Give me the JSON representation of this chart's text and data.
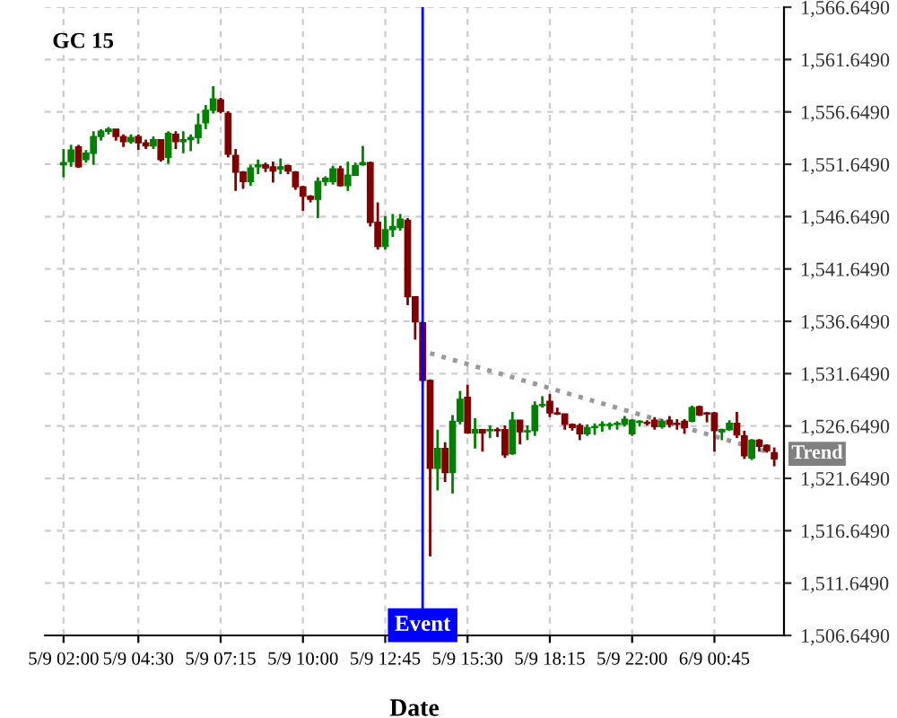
{
  "chart_data": {
    "type": "candlestick",
    "title": "GC 15",
    "xlabel": "Date",
    "categories": [
      "5/9 02:00",
      null,
      null,
      null,
      null,
      null,
      null,
      null,
      null,
      null,
      "5/9 04:30",
      null,
      null,
      null,
      null,
      null,
      null,
      null,
      null,
      null,
      null,
      "5/9 07:15",
      null,
      null,
      null,
      null,
      null,
      null,
      null,
      null,
      null,
      null,
      "5/9 10:00",
      null,
      null,
      null,
      null,
      null,
      null,
      null,
      null,
      null,
      null,
      "5/9 12:45",
      null,
      null,
      null,
      null,
      null,
      null,
      null,
      null,
      null,
      null,
      "5/9 15:30",
      null,
      null,
      null,
      null,
      null,
      null,
      null,
      null,
      null,
      null,
      "5/9 18:15",
      null,
      null,
      null,
      null,
      null,
      null,
      null,
      null,
      null,
      null,
      "5/9 22:00",
      null,
      null,
      null,
      null,
      null,
      null,
      null,
      null,
      null,
      null,
      "6/9 00:45",
      null,
      null,
      null,
      null,
      null,
      null,
      null,
      null
    ],
    "ohlc": [
      [
        1551.6,
        1553.1,
        1550.4,
        1551.8
      ],
      [
        1551.9,
        1553.5,
        1551.4,
        1553.0
      ],
      [
        1553.3,
        1553.5,
        1551.3,
        1551.4
      ],
      [
        1552.1,
        1553.0,
        1551.8,
        1552.7
      ],
      [
        1552.7,
        1554.8,
        1551.6,
        1554.3
      ],
      [
        1554.3,
        1555.0,
        1553.9,
        1554.8
      ],
      [
        1554.8,
        1555.2,
        1554.5,
        1555.0
      ],
      [
        1555.0,
        1555.0,
        1553.9,
        1554.3
      ],
      [
        1554.3,
        1554.5,
        1553.3,
        1553.8
      ],
      [
        1553.8,
        1554.5,
        1553.6,
        1554.2
      ],
      [
        1554.3,
        1554.5,
        1553.0,
        1553.7
      ],
      [
        1553.7,
        1554.0,
        1553.1,
        1553.4
      ],
      [
        1553.4,
        1554.3,
        1553.1,
        1554.0
      ],
      [
        1554.0,
        1554.0,
        1551.9,
        1552.1
      ],
      [
        1552.3,
        1554.8,
        1551.7,
        1554.6
      ],
      [
        1554.5,
        1554.8,
        1553.1,
        1553.8
      ],
      [
        1553.8,
        1554.8,
        1552.7,
        1554.0
      ],
      [
        1554.0,
        1554.5,
        1552.9,
        1554.2
      ],
      [
        1554.2,
        1556.5,
        1553.6,
        1555.4
      ],
      [
        1555.6,
        1557.3,
        1555.0,
        1556.8
      ],
      [
        1556.8,
        1559.1,
        1556.5,
        1557.9
      ],
      [
        1557.8,
        1558.0,
        1556.5,
        1556.7
      ],
      [
        1556.5,
        1556.7,
        1552.3,
        1552.6
      ],
      [
        1552.5,
        1553.1,
        1549.1,
        1550.9
      ],
      [
        1550.9,
        1551.0,
        1549.3,
        1550.0
      ],
      [
        1550.0,
        1551.6,
        1549.6,
        1551.3
      ],
      [
        1551.4,
        1552.1,
        1550.7,
        1551.6
      ],
      [
        1551.6,
        1551.8,
        1550.9,
        1551.3
      ],
      [
        1551.4,
        1551.9,
        1549.9,
        1551.0
      ],
      [
        1551.2,
        1552.2,
        1550.7,
        1551.4
      ],
      [
        1551.5,
        1551.6,
        1550.7,
        1551.0
      ],
      [
        1550.9,
        1551.0,
        1549.2,
        1549.5
      ],
      [
        1549.5,
        1549.6,
        1547.2,
        1548.6
      ],
      [
        1548.6,
        1548.7,
        1548.0,
        1548.3
      ],
      [
        1548.3,
        1550.4,
        1546.5,
        1550.0
      ],
      [
        1550.0,
        1550.5,
        1549.6,
        1550.3
      ],
      [
        1550.0,
        1551.5,
        1549.7,
        1551.2
      ],
      [
        1551.2,
        1551.5,
        1549.5,
        1549.6
      ],
      [
        1549.6,
        1551.9,
        1549.1,
        1550.6
      ],
      [
        1550.6,
        1551.8,
        1550.6,
        1551.5
      ],
      [
        1551.6,
        1553.4,
        1551.5,
        1551.8
      ],
      [
        1551.8,
        1551.9,
        1545.7,
        1546.1
      ],
      [
        1546.1,
        1548.0,
        1543.5,
        1543.8
      ],
      [
        1543.8,
        1546.7,
        1543.5,
        1545.4
      ],
      [
        1545.4,
        1546.9,
        1544.7,
        1545.7
      ],
      [
        1545.6,
        1546.9,
        1545.3,
        1546.4
      ],
      [
        1546.3,
        1546.5,
        1538.2,
        1539.0
      ],
      [
        1539.0,
        1539.0,
        1534.9,
        1536.6
      ],
      [
        1536.5,
        1536.6,
        1530.9,
        1531.0
      ],
      [
        1531.0,
        1531.1,
        1514.2,
        1522.6
      ],
      [
        1522.6,
        1526.3,
        1520.5,
        1524.5
      ],
      [
        1524.5,
        1525.1,
        1521.3,
        1522.2
      ],
      [
        1522.2,
        1527.7,
        1520.2,
        1527.1
      ],
      [
        1527.1,
        1530.0,
        1526.8,
        1529.2
      ],
      [
        1529.4,
        1530.6,
        1525.9,
        1526.0
      ],
      [
        1526.0,
        1527.4,
        1524.5,
        1526.3
      ],
      [
        1526.3,
        1526.3,
        1524.2,
        1526.0
      ],
      [
        1526.2,
        1526.7,
        1525.5,
        1526.3
      ],
      [
        1526.3,
        1526.5,
        1525.6,
        1526.2
      ],
      [
        1526.3,
        1526.7,
        1523.6,
        1523.9
      ],
      [
        1524.0,
        1528.0,
        1523.9,
        1527.2
      ],
      [
        1527.2,
        1527.2,
        1524.9,
        1526.1
      ],
      [
        1526.1,
        1526.7,
        1525.3,
        1526.2
      ],
      [
        1526.2,
        1529.0,
        1525.7,
        1528.6
      ],
      [
        1528.6,
        1529.5,
        1528.4,
        1528.7
      ],
      [
        1529.0,
        1529.7,
        1527.5,
        1527.9
      ],
      [
        1527.9,
        1528.4,
        1527.7,
        1527.8
      ],
      [
        1527.8,
        1527.8,
        1526.3,
        1526.8
      ],
      [
        1526.8,
        1526.9,
        1526.2,
        1526.5
      ],
      [
        1526.7,
        1526.9,
        1525.3,
        1525.9
      ],
      [
        1525.9,
        1526.8,
        1525.7,
        1526.5
      ],
      [
        1526.5,
        1526.9,
        1525.8,
        1526.6
      ],
      [
        1526.7,
        1527.1,
        1526.1,
        1526.8
      ],
      [
        1526.7,
        1527.0,
        1526.3,
        1526.8
      ],
      [
        1526.8,
        1527.1,
        1526.3,
        1526.9
      ],
      [
        1526.8,
        1527.6,
        1526.6,
        1527.3
      ],
      [
        1525.9,
        1527.3,
        1525.7,
        1527.2
      ],
      [
        1527.0,
        1527.2,
        1526.6,
        1527.1
      ],
      [
        1527.0,
        1527.2,
        1526.7,
        1526.9
      ],
      [
        1527.2,
        1527.5,
        1526.3,
        1526.6
      ],
      [
        1526.6,
        1527.3,
        1526.4,
        1527.1
      ],
      [
        1527.2,
        1527.6,
        1526.5,
        1526.8
      ],
      [
        1526.9,
        1527.3,
        1526.3,
        1526.8
      ],
      [
        1527.1,
        1527.3,
        1525.9,
        1526.5
      ],
      [
        1527.1,
        1528.6,
        1527.0,
        1528.4
      ],
      [
        1528.5,
        1528.6,
        1527.6,
        1527.7
      ],
      [
        1527.9,
        1528.0,
        1527.0,
        1527.8
      ],
      [
        1527.9,
        1528.0,
        1524.2,
        1526.2
      ],
      [
        1526.1,
        1526.4,
        1525.3,
        1526.3
      ],
      [
        1526.3,
        1527.2,
        1526.2,
        1526.9
      ],
      [
        1526.9,
        1528.0,
        1525.5,
        1525.8
      ],
      [
        1525.7,
        1526.2,
        1523.5,
        1523.8
      ],
      [
        1523.6,
        1525.4,
        1523.4,
        1525.3
      ],
      [
        1525.3,
        1525.4,
        1524.2,
        1524.7
      ],
      [
        1524.8,
        1524.9,
        1524.1,
        1524.3
      ],
      [
        1524.1,
        1524.6,
        1522.8,
        1523.5
      ]
    ],
    "series": [
      {
        "type": "line",
        "color": "#999999",
        "line_style": "dotted",
        "values": [
          null,
          null,
          null,
          null,
          null,
          null,
          null,
          null,
          null,
          null,
          null,
          null,
          null,
          null,
          null,
          null,
          null,
          null,
          null,
          null,
          null,
          null,
          null,
          null,
          null,
          null,
          null,
          null,
          null,
          null,
          null,
          null,
          null,
          null,
          null,
          null,
          null,
          null,
          null,
          null,
          null,
          null,
          null,
          null,
          null,
          null,
          null,
          null,
          null,
          1533.6,
          null,
          null,
          null,
          null,
          null,
          null,
          null,
          null,
          null,
          null,
          null,
          null,
          null,
          null,
          null,
          null,
          null,
          null,
          null,
          null,
          null,
          null,
          null,
          null,
          null,
          null,
          null,
          null,
          null,
          null,
          null,
          null,
          null,
          null,
          null,
          null,
          null,
          null,
          null,
          null,
          null,
          null,
          null,
          null,
          null,
          1524.0
        ]
      }
    ],
    "annotations": [
      {
        "text": "Trend",
        "y": 1524.0
      },
      "Event"
    ],
    "ylim": [
      1506.649,
      1566.649
    ],
    "yticks": [
      {
        "value": 1506.649,
        "label": "1,506.6490"
      },
      {
        "value": 1511.649,
        "label": "1,511.6490"
      },
      {
        "value": 1516.649,
        "label": "1,516.6490"
      },
      {
        "value": 1521.649,
        "label": "1,521.6490"
      },
      {
        "value": 1526.649,
        "label": "1,526.6490"
      },
      {
        "value": 1531.649,
        "label": "1,531.6490"
      },
      {
        "value": 1536.649,
        "label": "1,536.6490"
      },
      {
        "value": 1541.649,
        "label": "1,541.6490"
      },
      {
        "value": 1546.649,
        "label": "1,546.6490"
      },
      {
        "value": 1551.649,
        "label": "1,551.6490"
      },
      {
        "value": 1556.649,
        "label": "1,556.6490"
      },
      {
        "value": 1561.649,
        "label": "1,561.6490"
      },
      {
        "value": 1566.649,
        "label": "1,566.6490"
      }
    ],
    "grid": true
  }
}
